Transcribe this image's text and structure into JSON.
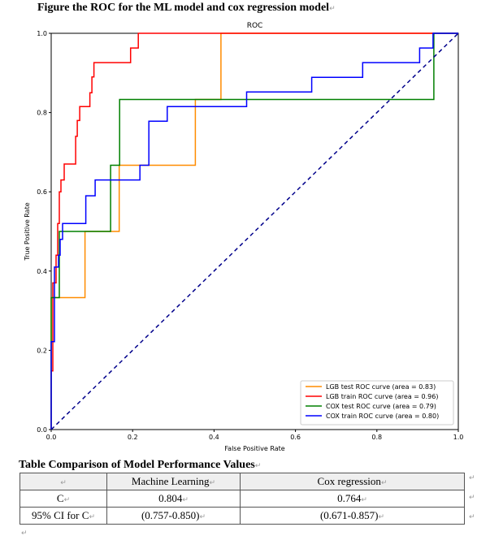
{
  "figure_caption": "Figure the ROC for the ML model and cox regression model",
  "paragraph_mark": "↵",
  "chart_data": {
    "type": "line",
    "title": "ROC",
    "xlabel": "False Positive Rate",
    "ylabel": "True Positive Rate",
    "xlim": [
      0,
      1
    ],
    "ylim": [
      0,
      1
    ],
    "x_ticks": [
      "0.0",
      "0.2",
      "0.4",
      "0.6",
      "0.8",
      "1.0"
    ],
    "y_ticks": [
      "0.0",
      "0.2",
      "0.4",
      "0.6",
      "0.8",
      "1.0"
    ],
    "legend_position": "lower-right",
    "series": [
      {
        "name": "LGB test ROC curve (area = 0.83)",
        "color": "#ff8c00",
        "points": [
          [
            0,
            0
          ],
          [
            0,
            0.333
          ],
          [
            0.083,
            0.333
          ],
          [
            0.083,
            0.5
          ],
          [
            0.167,
            0.5
          ],
          [
            0.167,
            0.667
          ],
          [
            0.354,
            0.667
          ],
          [
            0.354,
            0.833
          ],
          [
            0.417,
            0.833
          ],
          [
            0.417,
            1
          ],
          [
            1,
            1
          ]
        ]
      },
      {
        "name": "LGB train ROC curve (area = 0.96)",
        "color": "#ff0000",
        "points": [
          [
            0,
            0
          ],
          [
            0,
            0.148
          ],
          [
            0.004,
            0.148
          ],
          [
            0.004,
            0.37
          ],
          [
            0.012,
            0.37
          ],
          [
            0.012,
            0.44
          ],
          [
            0.016,
            0.44
          ],
          [
            0.016,
            0.52
          ],
          [
            0.02,
            0.52
          ],
          [
            0.02,
            0.6
          ],
          [
            0.024,
            0.6
          ],
          [
            0.024,
            0.63
          ],
          [
            0.032,
            0.63
          ],
          [
            0.032,
            0.67
          ],
          [
            0.06,
            0.67
          ],
          [
            0.06,
            0.74
          ],
          [
            0.064,
            0.74
          ],
          [
            0.064,
            0.78
          ],
          [
            0.07,
            0.78
          ],
          [
            0.07,
            0.815
          ],
          [
            0.095,
            0.815
          ],
          [
            0.095,
            0.85
          ],
          [
            0.1,
            0.85
          ],
          [
            0.1,
            0.89
          ],
          [
            0.105,
            0.89
          ],
          [
            0.105,
            0.926
          ],
          [
            0.195,
            0.926
          ],
          [
            0.195,
            0.963
          ],
          [
            0.214,
            0.963
          ],
          [
            0.214,
            1
          ],
          [
            1,
            1
          ]
        ]
      },
      {
        "name": "COX test ROC curve (area = 0.79)",
        "color": "#008000",
        "points": [
          [
            0,
            0
          ],
          [
            0,
            0.333
          ],
          [
            0.02,
            0.333
          ],
          [
            0.02,
            0.5
          ],
          [
            0.146,
            0.5
          ],
          [
            0.146,
            0.667
          ],
          [
            0.168,
            0.667
          ],
          [
            0.168,
            0.833
          ],
          [
            0.94,
            0.833
          ],
          [
            0.94,
            1
          ],
          [
            1,
            1
          ]
        ]
      },
      {
        "name": "COX train ROC curve (area = 0.80)",
        "color": "#0000ff",
        "points": [
          [
            0,
            0
          ],
          [
            0,
            0.222
          ],
          [
            0.008,
            0.222
          ],
          [
            0.008,
            0.41
          ],
          [
            0.018,
            0.41
          ],
          [
            0.018,
            0.44
          ],
          [
            0.022,
            0.44
          ],
          [
            0.022,
            0.48
          ],
          [
            0.028,
            0.48
          ],
          [
            0.028,
            0.52
          ],
          [
            0.085,
            0.52
          ],
          [
            0.085,
            0.59
          ],
          [
            0.108,
            0.59
          ],
          [
            0.108,
            0.63
          ],
          [
            0.218,
            0.63
          ],
          [
            0.218,
            0.667
          ],
          [
            0.24,
            0.667
          ],
          [
            0.24,
            0.778
          ],
          [
            0.285,
            0.778
          ],
          [
            0.285,
            0.815
          ],
          [
            0.48,
            0.815
          ],
          [
            0.48,
            0.852
          ],
          [
            0.64,
            0.852
          ],
          [
            0.64,
            0.889
          ],
          [
            0.765,
            0.889
          ],
          [
            0.765,
            0.926
          ],
          [
            0.905,
            0.926
          ],
          [
            0.905,
            0.963
          ],
          [
            0.938,
            0.963
          ],
          [
            0.938,
            1
          ],
          [
            1,
            1
          ]
        ]
      },
      {
        "name": "",
        "color": "#00008b",
        "dashed": true,
        "points": [
          [
            0,
            0
          ],
          [
            1,
            1
          ]
        ]
      }
    ]
  },
  "table_caption": "Table Comparison of Model Performance Values",
  "table": {
    "headers": [
      "",
      "Machine Learning",
      "Cox regression"
    ],
    "rows": [
      [
        "C",
        "0.804",
        "0.764"
      ],
      [
        "95% CI for C",
        "(0.757-0.850)",
        "(0.671-0.857)"
      ]
    ]
  }
}
